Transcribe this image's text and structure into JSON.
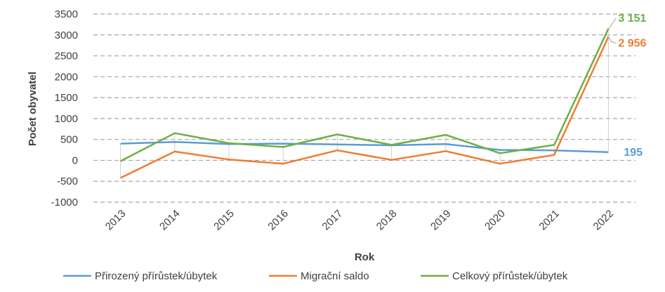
{
  "chart_data": {
    "type": "line",
    "title": "",
    "xlabel": "Rok",
    "ylabel": "Počet obyvatel",
    "categories": [
      "2013",
      "2014",
      "2015",
      "2016",
      "2017",
      "2018",
      "2019",
      "2020",
      "2021",
      "2022"
    ],
    "ylim": [
      -1000,
      3500
    ],
    "yticks": [
      "3500",
      "3000",
      "2500",
      "2000",
      "1500",
      "1000",
      "500",
      "0",
      "-500",
      "-1000"
    ],
    "grid": true,
    "legend_position": "bottom",
    "series": [
      {
        "name": "Přirozený přírůstek/úbytek",
        "color": "#5B9BD5",
        "values": [
          400,
          440,
          390,
          400,
          380,
          360,
          390,
          250,
          240,
          195
        ]
      },
      {
        "name": "Migrační saldo",
        "color": "#ED7D31",
        "values": [
          -420,
          210,
          20,
          -80,
          240,
          10,
          220,
          -80,
          130,
          2956
        ]
      },
      {
        "name": "Celkový přírůstek/úbytek",
        "color": "#70AD47",
        "values": [
          -20,
          650,
          410,
          320,
          620,
          370,
          610,
          170,
          370,
          3151
        ]
      }
    ],
    "annotations": [
      {
        "series": 2,
        "index": 9,
        "text": "3 151"
      },
      {
        "series": 1,
        "index": 9,
        "text": "2 956"
      },
      {
        "series": 0,
        "index": 9,
        "text": "195"
      }
    ]
  }
}
